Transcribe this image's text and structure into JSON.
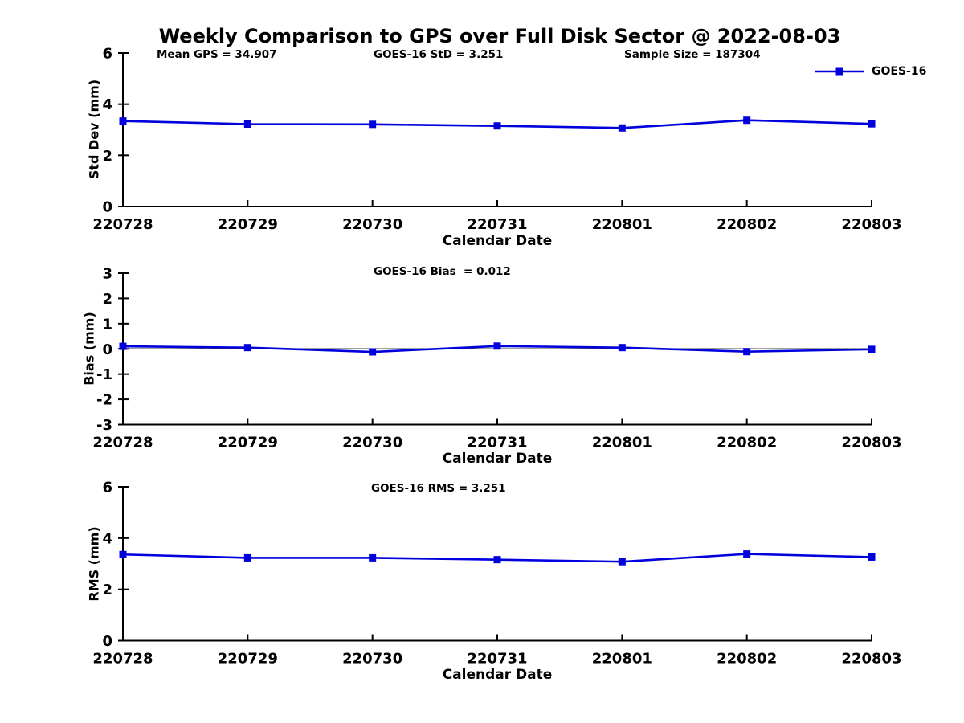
{
  "title": "Weekly Comparison to GPS over Full Disk Sector @ 2022-08-03",
  "legend": {
    "label": "GOES-16",
    "line_color": "#0000DD",
    "marker": "filled-square"
  },
  "stats": {
    "mean_gps": 34.907,
    "goes16_std": 3.251,
    "sample_size": 187304,
    "goes16_bias": 0.012,
    "goes16_rms": 3.251
  },
  "chart_data": [
    {
      "type": "line",
      "subplot": "std-dev",
      "ylabel": "Std Dev (mm)",
      "xlabel": "Calendar Date",
      "categories": [
        "220728",
        "220729",
        "220730",
        "220731",
        "220801",
        "220802",
        "220803"
      ],
      "series": [
        {
          "name": "GOES-16",
          "color": "#0000DD",
          "marker": "square",
          "values": [
            3.34,
            3.22,
            3.21,
            3.15,
            3.07,
            3.37,
            3.23
          ]
        }
      ],
      "ylim": [
        0,
        6
      ],
      "yticks": [
        0,
        2,
        4,
        6
      ],
      "grid": false,
      "legend_position": "top-right-outside",
      "annotations": [
        {
          "text": "Mean GPS = 34.907"
        },
        {
          "text": "GOES-16 StD = 3.251"
        },
        {
          "text": "Sample Size = 187304"
        }
      ]
    },
    {
      "type": "line",
      "subplot": "bias",
      "ylabel": "Bias (mm)",
      "xlabel": "Calendar Date",
      "categories": [
        "220728",
        "220729",
        "220730",
        "220731",
        "220801",
        "220802",
        "220803"
      ],
      "series": [
        {
          "name": "GOES-16",
          "color": "#0000DD",
          "marker": "square",
          "values": [
            0.1,
            0.05,
            -0.12,
            0.11,
            0.05,
            -0.11,
            -0.02
          ]
        }
      ],
      "ylim": [
        -3,
        3
      ],
      "yticks": [
        -3,
        -2,
        -1,
        0,
        1,
        2,
        3
      ],
      "zero_line": true,
      "grid": false,
      "annotations": [
        {
          "text": "GOES-16 Bias  = 0.012"
        }
      ]
    },
    {
      "type": "line",
      "subplot": "rms",
      "ylabel": "RMS (mm)",
      "xlabel": "Calendar Date",
      "categories": [
        "220728",
        "220729",
        "220730",
        "220731",
        "220801",
        "220802",
        "220803"
      ],
      "series": [
        {
          "name": "GOES-16",
          "color": "#0000DD",
          "marker": "square",
          "values": [
            3.36,
            3.23,
            3.23,
            3.16,
            3.08,
            3.38,
            3.26
          ]
        }
      ],
      "ylim": [
        0,
        6
      ],
      "yticks": [
        0,
        2,
        4,
        6
      ],
      "grid": false,
      "annotations": [
        {
          "text": "GOES-16 RMS = 3.251"
        }
      ]
    }
  ]
}
